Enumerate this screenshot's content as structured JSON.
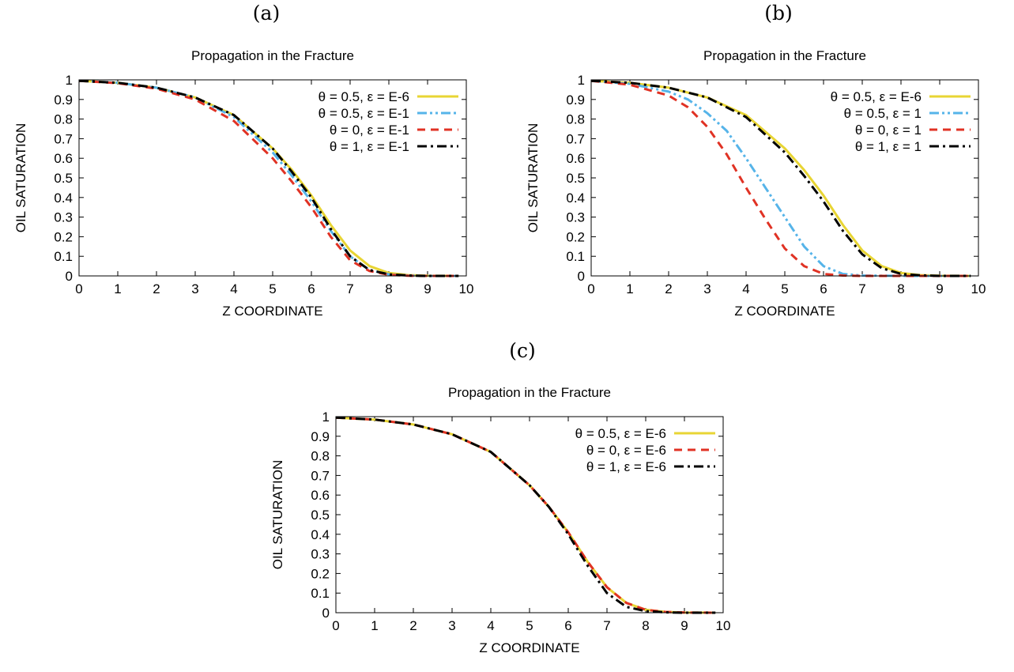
{
  "panels": [
    {
      "label": "(a)"
    },
    {
      "label": "(b)"
    },
    {
      "label": "(c)"
    }
  ],
  "chart_data": [
    {
      "type": "line",
      "title": "Propagation in the Fracture",
      "xlabel": "Z COORDINATE",
      "ylabel": "OIL SATURATION",
      "xlim": [
        0,
        10
      ],
      "ylim": [
        0,
        1
      ],
      "xticks": [
        "0",
        "1",
        "2",
        "3",
        "4",
        "5",
        "6",
        "7",
        "8",
        "9",
        "10"
      ],
      "yticks": [
        "0",
        "0.1",
        "0.2",
        "0.3",
        "0.4",
        "0.5",
        "0.6",
        "0.7",
        "0.8",
        "0.9",
        "1"
      ],
      "grid": false,
      "legend_position": "top-right",
      "series": [
        {
          "name": "θ = 0.5, ε = E-6",
          "color": "#e8d534",
          "dash": "solid",
          "x": [
            0,
            1,
            2,
            3,
            4,
            5,
            5.5,
            6,
            6.5,
            7,
            7.5,
            8,
            8.5,
            9,
            9.8
          ],
          "y": [
            0.995,
            0.985,
            0.96,
            0.91,
            0.82,
            0.65,
            0.54,
            0.41,
            0.26,
            0.13,
            0.05,
            0.015,
            0.004,
            0.001,
            0.0
          ]
        },
        {
          "name": "θ = 0.5, ε = E-1",
          "color": "#56b4e9",
          "dash": "dashdotdot",
          "x": [
            0,
            1,
            2,
            3,
            4,
            5,
            5.5,
            6,
            6.5,
            7,
            7.5,
            8,
            8.5,
            9,
            9.8
          ],
          "y": [
            0.995,
            0.985,
            0.96,
            0.91,
            0.81,
            0.63,
            0.51,
            0.38,
            0.23,
            0.1,
            0.03,
            0.008,
            0.002,
            0.0,
            0.0
          ]
        },
        {
          "name": "θ = 0, ε = E-1",
          "color": "#e03224",
          "dash": "dashed",
          "x": [
            0,
            1,
            2,
            3,
            4,
            5,
            5.5,
            6,
            6.5,
            7,
            7.5,
            8,
            8.5,
            9,
            9.8
          ],
          "y": [
            0.995,
            0.983,
            0.955,
            0.9,
            0.79,
            0.6,
            0.48,
            0.35,
            0.2,
            0.08,
            0.025,
            0.006,
            0.001,
            0.0,
            0.0
          ]
        },
        {
          "name": "θ = 1, ε = E-1",
          "color": "#000000",
          "dash": "dashdot",
          "x": [
            0,
            1,
            2,
            3,
            4,
            5,
            5.5,
            6,
            6.5,
            7,
            7.5,
            8,
            8.5,
            9,
            9.8
          ],
          "y": [
            0.995,
            0.985,
            0.96,
            0.91,
            0.82,
            0.65,
            0.53,
            0.4,
            0.24,
            0.1,
            0.03,
            0.008,
            0.002,
            0.0,
            0.0
          ]
        }
      ]
    },
    {
      "type": "line",
      "title": "Propagation in the Fracture",
      "xlabel": "Z COORDINATE",
      "ylabel": "OIL SATURATION",
      "xlim": [
        0,
        10
      ],
      "ylim": [
        0,
        1
      ],
      "xticks": [
        "0",
        "1",
        "2",
        "3",
        "4",
        "5",
        "6",
        "7",
        "8",
        "9",
        "10"
      ],
      "yticks": [
        "0",
        "0.1",
        "0.2",
        "0.3",
        "0.4",
        "0.5",
        "0.6",
        "0.7",
        "0.8",
        "0.9",
        "1"
      ],
      "grid": false,
      "legend_position": "top-right",
      "series": [
        {
          "name": "θ = 0.5, ε = E-6",
          "color": "#e8d534",
          "dash": "solid",
          "x": [
            0,
            1,
            2,
            3,
            4,
            5,
            5.5,
            6,
            6.5,
            7,
            7.5,
            8,
            8.5,
            9,
            9.8
          ],
          "y": [
            0.995,
            0.985,
            0.96,
            0.91,
            0.82,
            0.65,
            0.54,
            0.41,
            0.26,
            0.13,
            0.05,
            0.015,
            0.004,
            0.001,
            0.0
          ]
        },
        {
          "name": "θ = 0.5, ε = 1",
          "color": "#56b4e9",
          "dash": "dashdotdot",
          "x": [
            0,
            1,
            2,
            2.5,
            3,
            3.5,
            4,
            4.5,
            5,
            5.5,
            6,
            6.5,
            7,
            8,
            9.8
          ],
          "y": [
            0.995,
            0.98,
            0.94,
            0.9,
            0.83,
            0.74,
            0.6,
            0.45,
            0.3,
            0.15,
            0.05,
            0.01,
            0.002,
            0.0,
            0.0
          ]
        },
        {
          "name": "θ = 0, ε = 1",
          "color": "#e03224",
          "dash": "dashed",
          "x": [
            0,
            1,
            2,
            2.5,
            3,
            3.5,
            4,
            4.5,
            5,
            5.5,
            6,
            6.5,
            7,
            8,
            9.8
          ],
          "y": [
            0.995,
            0.975,
            0.92,
            0.86,
            0.76,
            0.62,
            0.45,
            0.29,
            0.14,
            0.05,
            0.01,
            0.002,
            0.0,
            0.0,
            0.0
          ]
        },
        {
          "name": "θ = 1, ε = 1",
          "color": "#000000",
          "dash": "dashdot",
          "x": [
            0,
            1,
            2,
            3,
            4,
            5,
            5.5,
            6,
            6.5,
            7,
            7.5,
            8,
            8.5,
            9,
            9.8
          ],
          "y": [
            0.995,
            0.985,
            0.96,
            0.91,
            0.81,
            0.63,
            0.51,
            0.38,
            0.23,
            0.11,
            0.04,
            0.01,
            0.003,
            0.0,
            0.0
          ]
        }
      ]
    },
    {
      "type": "line",
      "title": "Propagation in the Fracture",
      "xlabel": "Z COORDINATE",
      "ylabel": "OIL SATURATION",
      "xlim": [
        0,
        10
      ],
      "ylim": [
        0,
        1
      ],
      "xticks": [
        "0",
        "1",
        "2",
        "3",
        "4",
        "5",
        "6",
        "7",
        "8",
        "9",
        "10"
      ],
      "yticks": [
        "0",
        "0.1",
        "0.2",
        "0.3",
        "0.4",
        "0.5",
        "0.6",
        "0.7",
        "0.8",
        "0.9",
        "1"
      ],
      "grid": false,
      "legend_position": "top-right",
      "series": [
        {
          "name": "θ = 0.5, ε = E-6",
          "color": "#e8d534",
          "dash": "solid",
          "x": [
            0,
            1,
            2,
            3,
            4,
            5,
            5.5,
            6,
            6.5,
            7,
            7.5,
            8,
            8.5,
            9,
            9.8
          ],
          "y": [
            0.995,
            0.985,
            0.96,
            0.91,
            0.82,
            0.65,
            0.54,
            0.41,
            0.26,
            0.13,
            0.05,
            0.015,
            0.004,
            0.001,
            0.0
          ]
        },
        {
          "name": "θ = 0, ε = E-6",
          "color": "#e03224",
          "dash": "dashed",
          "x": [
            0,
            1,
            2,
            3,
            4,
            5,
            5.5,
            6,
            6.5,
            7,
            7.5,
            8,
            8.5,
            9,
            9.8
          ],
          "y": [
            0.995,
            0.985,
            0.96,
            0.91,
            0.82,
            0.65,
            0.54,
            0.41,
            0.26,
            0.13,
            0.05,
            0.015,
            0.004,
            0.001,
            0.0
          ]
        },
        {
          "name": "θ = 1, ε = E-6",
          "color": "#000000",
          "dash": "dashdot",
          "x": [
            0,
            1,
            2,
            3,
            4,
            5,
            5.5,
            6,
            6.5,
            7,
            7.5,
            8,
            8.5,
            9,
            9.8
          ],
          "y": [
            0.995,
            0.985,
            0.96,
            0.91,
            0.82,
            0.65,
            0.54,
            0.4,
            0.24,
            0.1,
            0.03,
            0.008,
            0.002,
            0.0,
            0.0
          ]
        }
      ]
    }
  ]
}
